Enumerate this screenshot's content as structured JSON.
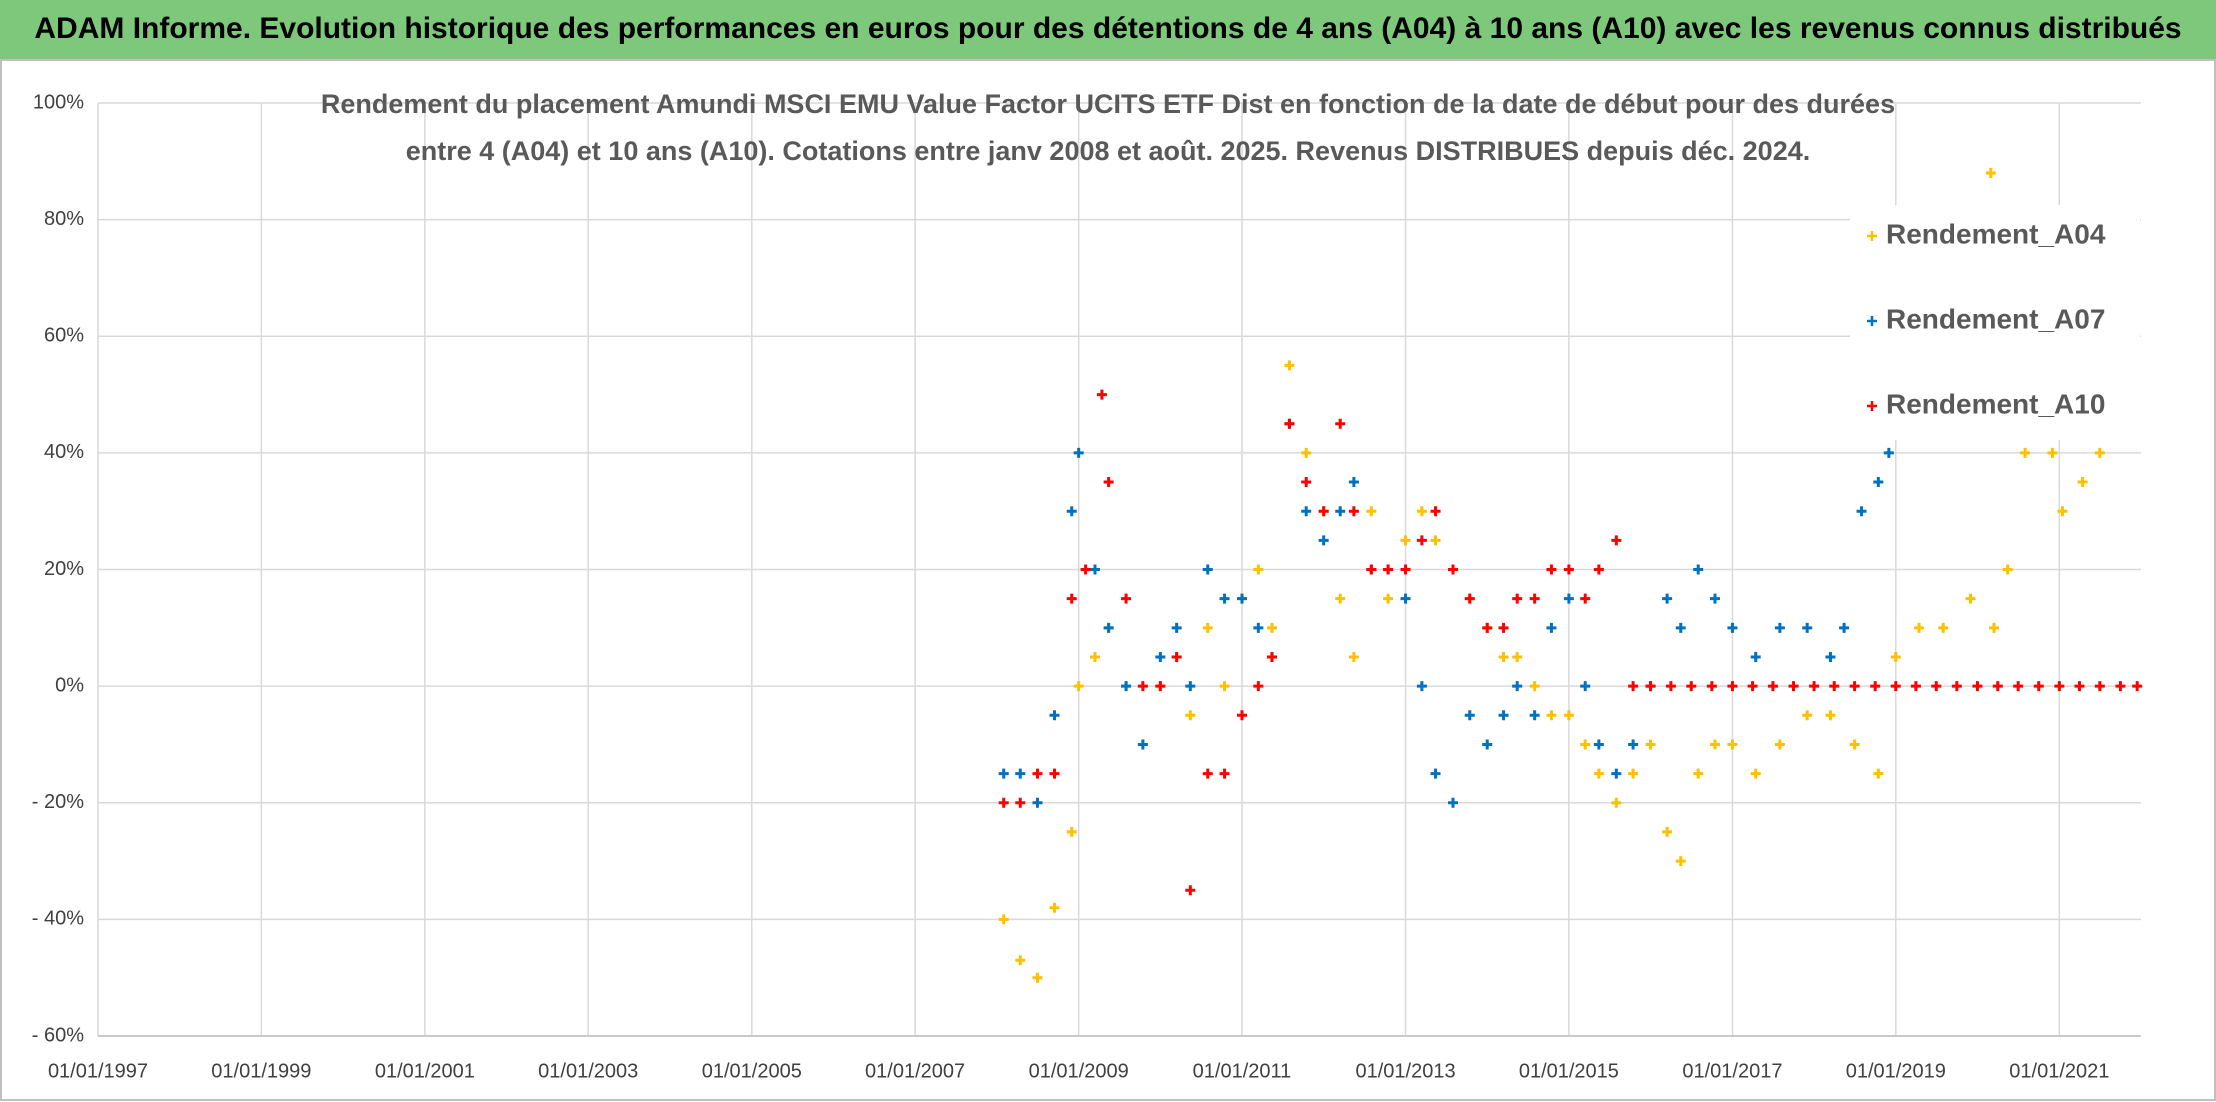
{
  "chart_data": {
    "type": "scatter",
    "banner": "ADAM Informe. Evolution historique des performances en euros pour des détentions de 4 ans (A04) à 10 ans (A10) avec les revenus connus distribués",
    "title": [
      "Rendement du placement Amundi MSCI EMU Value Factor UCITS ETF Dist en fonction de la date de début pour des durées",
      "entre 4 (A04) et 10 ans (A10). Cotations entre janv 2008 et août. 2025. Revenus DISTRIBUES depuis déc. 2024."
    ],
    "xlim": [
      "1997-01-01",
      "2022-01-01"
    ],
    "xticks": [
      {
        "value": "1997-01-01",
        "label": "01/01/1997"
      },
      {
        "value": "1999-01-01",
        "label": "01/01/1999"
      },
      {
        "value": "2001-01-01",
        "label": "01/01/2001"
      },
      {
        "value": "2003-01-01",
        "label": "01/01/2003"
      },
      {
        "value": "2005-01-01",
        "label": "01/01/2005"
      },
      {
        "value": "2007-01-01",
        "label": "01/01/2007"
      },
      {
        "value": "2009-01-01",
        "label": "01/01/2009"
      },
      {
        "value": "2011-01-01",
        "label": "01/01/2011"
      },
      {
        "value": "2013-01-01",
        "label": "01/01/2013"
      },
      {
        "value": "2015-01-01",
        "label": "01/01/2015"
      },
      {
        "value": "2017-01-01",
        "label": "01/01/2017"
      },
      {
        "value": "2019-01-01",
        "label": "01/01/2019"
      },
      {
        "value": "2021-01-01",
        "label": "01/01/2021"
      }
    ],
    "ylim": [
      -60,
      100
    ],
    "yticks": [
      {
        "value": -60,
        "label": "- 60%"
      },
      {
        "value": -40,
        "label": "- 40%"
      },
      {
        "value": -20,
        "label": "- 20%"
      },
      {
        "value": 0,
        "label": "0%"
      },
      {
        "value": 20,
        "label": "20%"
      },
      {
        "value": 40,
        "label": "40%"
      },
      {
        "value": 60,
        "label": "60%"
      },
      {
        "value": 80,
        "label": "80%"
      },
      {
        "value": 100,
        "label": "100%"
      }
    ],
    "grid": true,
    "legend": "upper right",
    "series": [
      {
        "name": "Rendement_A04",
        "color": "#FFC000",
        "x": [
          "2008-02-01",
          "2008-04-15",
          "2008-07-01",
          "2008-09-15",
          "2008-12-01",
          "2009-01-01",
          "2009-03-15",
          "2009-05-15",
          "2009-08-01",
          "2009-10-15",
          "2010-01-01",
          "2010-03-15",
          "2010-05-15",
          "2010-08-01",
          "2010-10-15",
          "2011-01-01",
          "2011-03-15",
          "2011-05-15",
          "2011-08-01",
          "2011-10-15",
          "2012-01-01",
          "2012-03-15",
          "2012-05-15",
          "2012-08-01",
          "2012-10-15",
          "2013-01-01",
          "2013-03-15",
          "2013-05-15",
          "2013-08-01",
          "2013-10-15",
          "2014-01-01",
          "2014-03-15",
          "2014-05-15",
          "2014-08-01",
          "2014-10-15",
          "2015-01-01",
          "2015-03-15",
          "2015-05-15",
          "2015-08-01",
          "2015-10-15",
          "2016-01-01",
          "2016-03-15",
          "2016-05-15",
          "2016-08-01",
          "2016-10-15",
          "2017-01-01",
          "2017-04-15",
          "2017-08-01",
          "2017-12-01",
          "2018-03-15",
          "2018-07-01",
          "2018-10-15",
          "2019-01-01",
          "2019-04-15",
          "2019-08-01",
          "2019-12-01",
          "2020-03-01",
          "2020-03-15",
          "2020-05-15",
          "2020-08-01",
          "2020-12-01",
          "2021-01-15",
          "2021-04-15",
          "2021-07-01"
        ],
        "values": [
          -40,
          -47,
          -50,
          -38,
          -25,
          0,
          5,
          10,
          0,
          -10,
          0,
          5,
          -5,
          10,
          0,
          15,
          20,
          10,
          55,
          40,
          30,
          15,
          5,
          30,
          15,
          25,
          30,
          25,
          20,
          15,
          10,
          5,
          5,
          0,
          -5,
          -5,
          -10,
          -15,
          -20,
          -15,
          -10,
          -25,
          -30,
          -15,
          -10,
          -10,
          -15,
          -10,
          -5,
          -5,
          -10,
          -15,
          5,
          10,
          10,
          15,
          88,
          10,
          20,
          40,
          40,
          30,
          35,
          40
        ]
      },
      {
        "name": "Rendement_A07",
        "color": "#0070C0",
        "x": [
          "2008-02-01",
          "2008-04-15",
          "2008-07-01",
          "2008-09-15",
          "2008-12-01",
          "2009-01-01",
          "2009-03-15",
          "2009-05-15",
          "2009-08-01",
          "2009-10-15",
          "2010-01-01",
          "2010-03-15",
          "2010-05-15",
          "2010-08-01",
          "2010-10-15",
          "2011-01-01",
          "2011-03-15",
          "2011-05-15",
          "2011-08-01",
          "2011-10-15",
          "2012-01-01",
          "2012-03-15",
          "2012-05-15",
          "2012-08-01",
          "2012-10-15",
          "2013-01-01",
          "2013-03-15",
          "2013-05-15",
          "2013-08-01",
          "2013-10-15",
          "2014-01-01",
          "2014-03-15",
          "2014-05-15",
          "2014-08-01",
          "2014-10-15",
          "2015-01-01",
          "2015-03-15",
          "2015-05-15",
          "2015-08-01",
          "2015-10-15",
          "2016-01-01",
          "2016-03-15",
          "2016-05-15",
          "2016-08-01",
          "2016-10-15",
          "2017-01-01",
          "2017-04-15",
          "2017-08-01",
          "2017-12-01",
          "2018-03-15",
          "2018-05-15",
          "2018-08-01",
          "2018-10-15",
          "2018-12-01"
        ],
        "values": [
          -15,
          -15,
          -20,
          -5,
          30,
          40,
          20,
          10,
          0,
          -10,
          5,
          10,
          0,
          20,
          15,
          15,
          10,
          5,
          45,
          30,
          25,
          30,
          35,
          20,
          20,
          15,
          0,
          -15,
          -20,
          -5,
          -10,
          -5,
          0,
          -5,
          10,
          15,
          0,
          -10,
          -15,
          -10,
          0,
          15,
          10,
          20,
          15,
          10,
          5,
          10,
          10,
          5,
          10,
          30,
          35,
          40
        ]
      },
      {
        "name": "Rendement_A10",
        "color": "#FF0000",
        "x": [
          "2008-02-01",
          "2008-04-15",
          "2008-07-01",
          "2008-09-15",
          "2008-12-01",
          "2009-02-01",
          "2009-04-15",
          "2009-05-15",
          "2009-08-01",
          "2009-10-15",
          "2010-01-01",
          "2010-03-15",
          "2010-05-15",
          "2010-08-01",
          "2010-10-15",
          "2011-01-01",
          "2011-03-15",
          "2011-05-15",
          "2011-08-01",
          "2011-10-15",
          "2012-01-01",
          "2012-03-15",
          "2012-05-15",
          "2012-08-01",
          "2012-10-15",
          "2013-01-01",
          "2013-03-15",
          "2013-05-15",
          "2013-08-01",
          "2013-10-15",
          "2014-01-01",
          "2014-03-15",
          "2014-05-15",
          "2014-08-01",
          "2014-10-15",
          "2015-01-01",
          "2015-03-15",
          "2015-05-15",
          "2015-08-01",
          "2015-10-15",
          "2016-01-01",
          "2016-04-01",
          "2016-07-01",
          "2016-10-01",
          "2017-01-01",
          "2017-04-01",
          "2017-07-01",
          "2017-10-01",
          "2018-01-01",
          "2018-04-01",
          "2018-07-01",
          "2018-10-01",
          "2019-01-01",
          "2019-04-01",
          "2019-07-01",
          "2019-10-01",
          "2020-01-01",
          "2020-04-01",
          "2020-07-01",
          "2020-10-01",
          "2021-01-01",
          "2021-04-01",
          "2021-07-01",
          "2021-10-01",
          "2021-12-15"
        ],
        "values": [
          -20,
          -20,
          -15,
          -15,
          15,
          20,
          50,
          35,
          15,
          0,
          0,
          5,
          -35,
          -15,
          -15,
          -5,
          0,
          5,
          45,
          35,
          30,
          45,
          30,
          20,
          20,
          20,
          25,
          30,
          20,
          15,
          10,
          10,
          15,
          15,
          20,
          20,
          15,
          20,
          25,
          0,
          0,
          0,
          0,
          0,
          0,
          0,
          0,
          0,
          0,
          0,
          0,
          0,
          0,
          0,
          0,
          0,
          0,
          0,
          0,
          0,
          0,
          0,
          0,
          0,
          0
        ]
      }
    ]
  }
}
